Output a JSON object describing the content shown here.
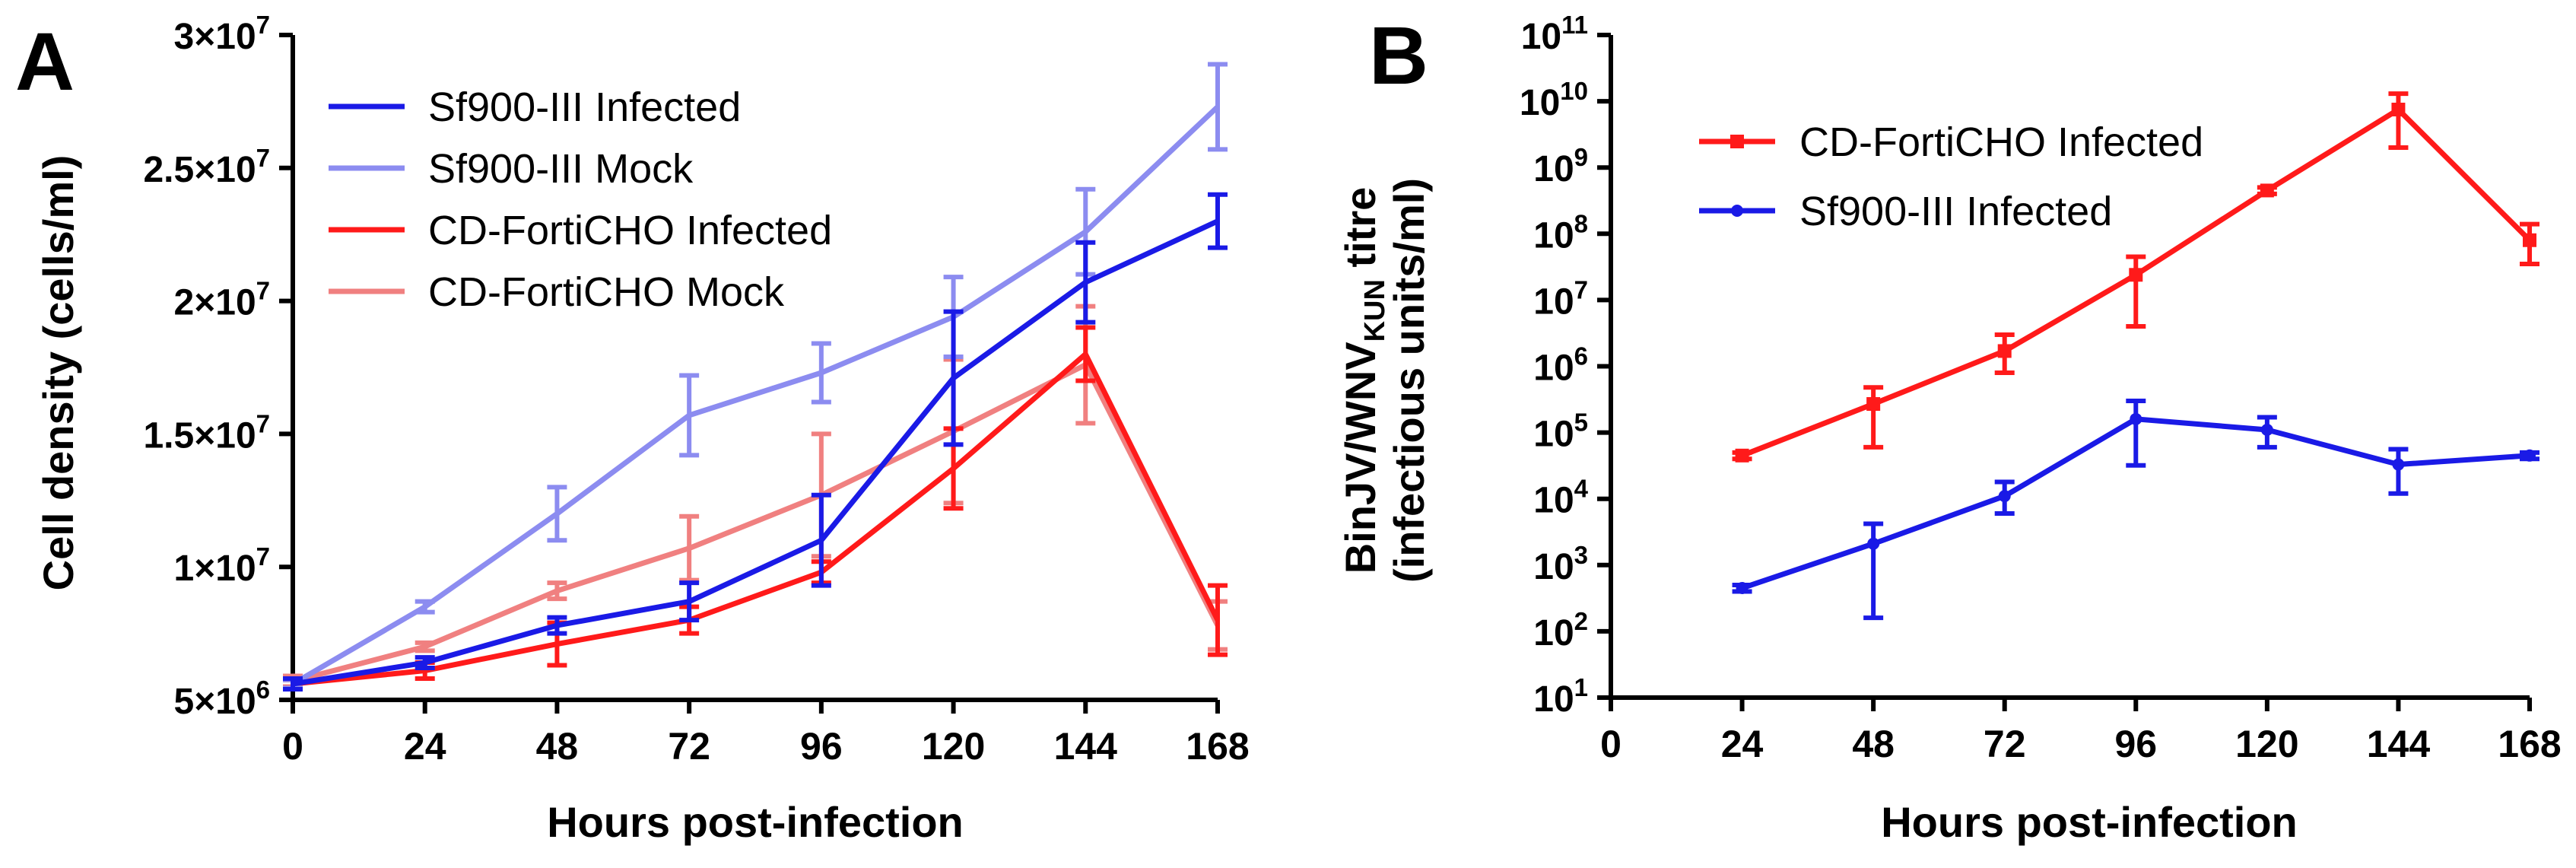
{
  "chart_data": [
    {
      "panel_label": "A",
      "type": "line",
      "xlabel": "Hours post-infection",
      "ylabel": "Cell density (cells/ml)",
      "x": [
        0,
        24,
        48,
        72,
        96,
        120,
        144,
        168
      ],
      "xlim": [
        0,
        168
      ],
      "ylim": [
        5000000,
        30000000
      ],
      "y_scale": "linear",
      "x_tick_labels": [
        "0",
        "24",
        "48",
        "72",
        "96",
        "120",
        "144",
        "168"
      ],
      "y_ticks": [
        {
          "value": 5000000,
          "mantissa": "5×10",
          "exp": "6"
        },
        {
          "value": 10000000,
          "mantissa": "1×10",
          "exp": "7"
        },
        {
          "value": 15000000,
          "mantissa": "1.5×10",
          "exp": "7"
        },
        {
          "value": 20000000,
          "mantissa": "2×10",
          "exp": "7"
        },
        {
          "value": 25000000,
          "mantissa": "2.5×10",
          "exp": "7"
        },
        {
          "value": 30000000,
          "mantissa": "3×10",
          "exp": "7"
        }
      ],
      "legend_position": "top-left",
      "series": [
        {
          "name": "CD-FortiCHO Mock",
          "color": "#f08080",
          "values": [
            5700000,
            7000000,
            9100000,
            10700000,
            12700000,
            15100000,
            17600000,
            7800000
          ],
          "errors": [
            200000,
            150000,
            300000,
            1200000,
            2300000,
            2700000,
            2200000,
            900000
          ]
        },
        {
          "name": "CD-FortiCHO Infected",
          "color": "#ff1a1a",
          "values": [
            5600000,
            6100000,
            7100000,
            8000000,
            9800000,
            13700000,
            18000000,
            8000000
          ],
          "errors": [
            150000,
            300000,
            800000,
            500000,
            400000,
            1500000,
            1000000,
            1300000
          ]
        },
        {
          "name": "Sf900-III Mock",
          "color": "#8c8cf0",
          "values": [
            5600000,
            8500000,
            12000000,
            15700000,
            17300000,
            19400000,
            22600000,
            27300000
          ],
          "errors": [
            150000,
            200000,
            1000000,
            1500000,
            1100000,
            1500000,
            1600000,
            1600000
          ]
        },
        {
          "name": "Sf900-III Infected",
          "color": "#1a1ae6",
          "values": [
            5600000,
            6400000,
            7800000,
            8700000,
            11000000,
            17100000,
            20700000,
            23000000
          ],
          "errors": [
            200000,
            200000,
            300000,
            700000,
            1700000,
            2500000,
            1500000,
            1000000
          ]
        }
      ],
      "legend_order": [
        "Sf900-III Infected",
        "Sf900-III Mock",
        "CD-FortiCHO Infected",
        "CD-FortiCHO Mock"
      ]
    },
    {
      "panel_label": "B",
      "type": "line",
      "xlabel": "Hours post-infection",
      "ylabel_main": "BinJV/WNV",
      "ylabel_sub": "KUN",
      "ylabel_after": " titre",
      "ylabel_line2": "(infectious units/ml)",
      "x": [
        24,
        48,
        72,
        96,
        120,
        144,
        168
      ],
      "xlim": [
        0,
        168
      ],
      "ylim": [
        10,
        100000000000
      ],
      "y_scale": "log10",
      "x_tick_labels": [
        "0",
        "24",
        "48",
        "72",
        "96",
        "120",
        "144",
        "168"
      ],
      "y_ticks": [
        {
          "exp_value": 1,
          "base": "10",
          "exp": "1"
        },
        {
          "exp_value": 2,
          "base": "10",
          "exp": "2"
        },
        {
          "exp_value": 3,
          "base": "10",
          "exp": "3"
        },
        {
          "exp_value": 4,
          "base": "10",
          "exp": "4"
        },
        {
          "exp_value": 5,
          "base": "10",
          "exp": "5"
        },
        {
          "exp_value": 6,
          "base": "10",
          "exp": "6"
        },
        {
          "exp_value": 7,
          "base": "10",
          "exp": "7"
        },
        {
          "exp_value": 8,
          "base": "10",
          "exp": "8"
        },
        {
          "exp_value": 9,
          "base": "10",
          "exp": "9"
        },
        {
          "exp_value": 10,
          "base": "10",
          "exp": "10"
        },
        {
          "exp_value": 11,
          "base": "10",
          "exp": "11"
        }
      ],
      "legend_position": "top-left",
      "series": [
        {
          "name": "CD-FortiCHO Infected",
          "color": "#ff1a1a",
          "marker": "square",
          "values": [
            45000,
            270000,
            1700000,
            24000000,
            450000000,
            7500000000,
            80000000
          ],
          "err_low": [
            40000,
            60000,
            800000,
            4000000,
            400000000,
            2000000000,
            35000000
          ],
          "err_high": [
            50000,
            480000,
            3000000,
            45000000,
            500000000,
            13000000000,
            140000000
          ]
        },
        {
          "name": "Sf900-III Infected",
          "color": "#1a1ae6",
          "marker": "circle",
          "values": [
            450,
            2100,
            11000,
            160000,
            110000,
            33000,
            45000
          ],
          "err_low": [
            400,
            160,
            6000,
            32000,
            60000,
            12000,
            40000
          ],
          "err_high": [
            500,
            4200,
            18000,
            300000,
            170000,
            56000,
            50000
          ]
        }
      ],
      "legend_order": [
        "CD-FortiCHO Infected",
        "Sf900-III Infected"
      ]
    }
  ]
}
